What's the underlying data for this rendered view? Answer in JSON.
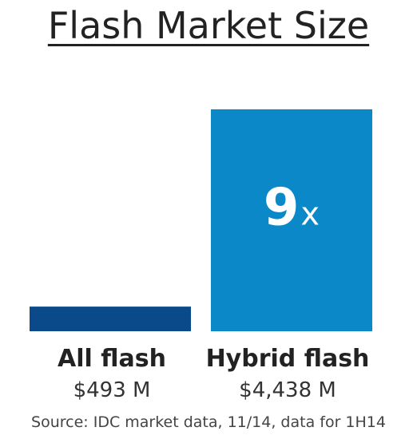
{
  "chart_data": {
    "type": "bar",
    "title": "Flash Market Size",
    "categories": [
      "All flash",
      "Hybrid flash"
    ],
    "values": [
      493,
      4438
    ],
    "value_labels": [
      "$493 M",
      "$4,438 M"
    ],
    "colors": [
      "#0a4a8a",
      "#0a88c8"
    ],
    "annotation": {
      "number": "9",
      "suffix": "x"
    },
    "source": "Source: IDC market data, 11/14, data for 1H14",
    "grid": false
  }
}
